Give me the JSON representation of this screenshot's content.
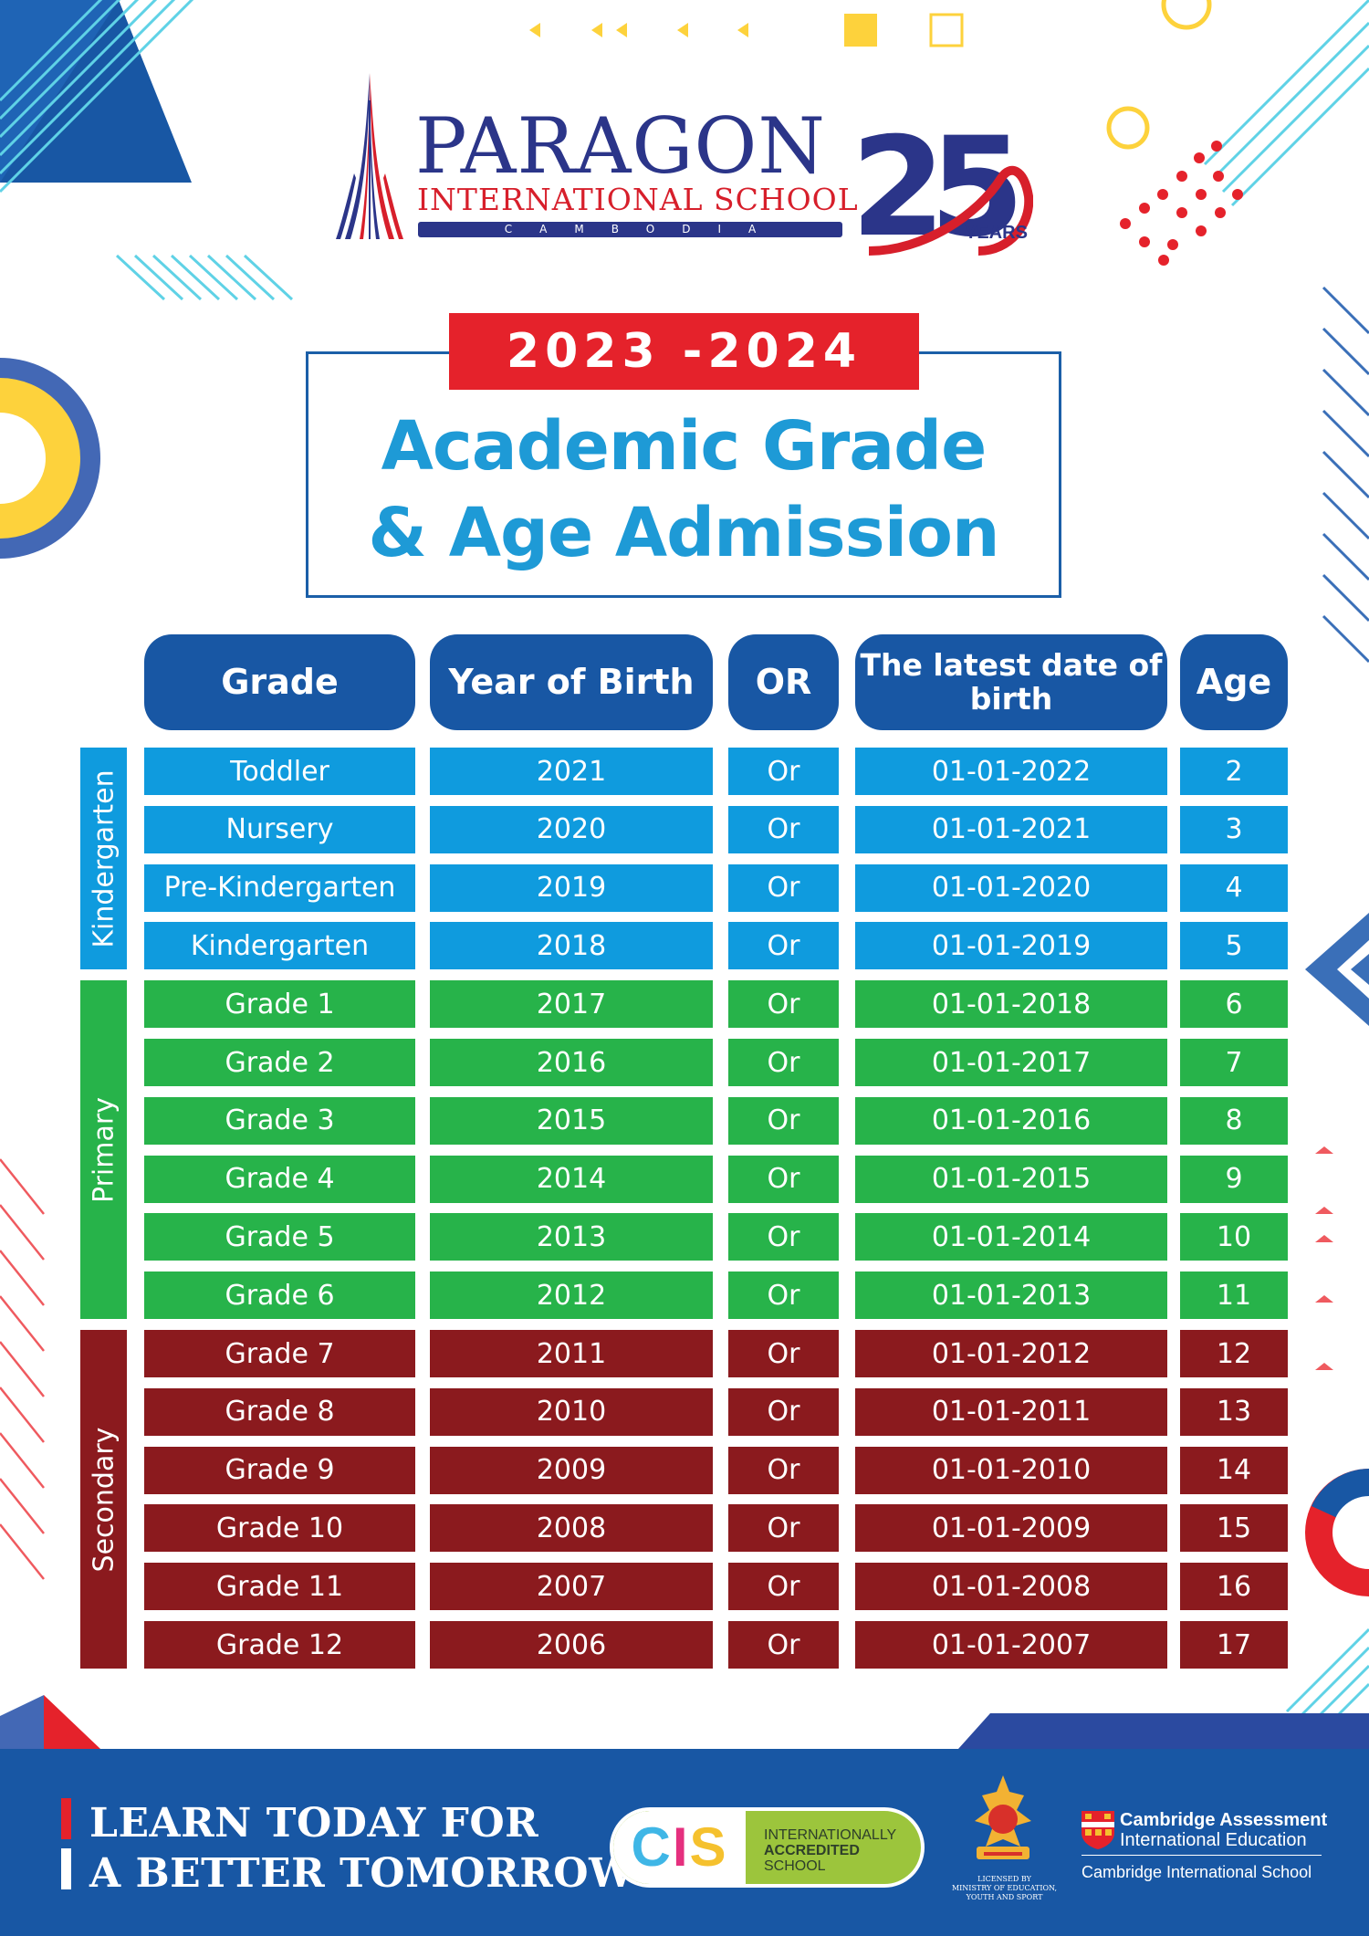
{
  "logo": {
    "name": "PARAGON",
    "subtitle": "INTERNATIONAL SCHOOL",
    "country": "CAMBODIA",
    "anniversary": "25",
    "anniversary_unit": "YEARS"
  },
  "year_badge": "2023 -2024",
  "title": {
    "line1": "Academic Grade",
    "line2": "& Age Admission"
  },
  "table": {
    "headers": [
      "Grade",
      "Year of Birth",
      "OR",
      "The latest date of birth",
      "Age"
    ],
    "sections": [
      {
        "label": "Kindergarten",
        "color": "#0f9bde"
      },
      {
        "label": "Primary",
        "color": "#27b34a"
      },
      {
        "label": "Secondary",
        "color": "#8b1a1e"
      }
    ],
    "rows": [
      {
        "grade": "Toddler",
        "year": "2021",
        "or": "Or",
        "latest_dob": "01-01-2022",
        "age": "2"
      },
      {
        "grade": "Nursery",
        "year": "2020",
        "or": "Or",
        "latest_dob": "01-01-2021",
        "age": "3"
      },
      {
        "grade": "Pre-Kindergarten",
        "year": "2019",
        "or": "Or",
        "latest_dob": "01-01-2020",
        "age": "4"
      },
      {
        "grade": "Kindergarten",
        "year": "2018",
        "or": "Or",
        "latest_dob": "01-01-2019",
        "age": "5"
      },
      {
        "grade": "Grade 1",
        "year": "2017",
        "or": "Or",
        "latest_dob": "01-01-2018",
        "age": "6"
      },
      {
        "grade": "Grade 2",
        "year": "2016",
        "or": "Or",
        "latest_dob": "01-01-2017",
        "age": "7"
      },
      {
        "grade": "Grade 3",
        "year": "2015",
        "or": "Or",
        "latest_dob": "01-01-2016",
        "age": "8"
      },
      {
        "grade": "Grade 4",
        "year": "2014",
        "or": "Or",
        "latest_dob": "01-01-2015",
        "age": "9"
      },
      {
        "grade": "Grade 5",
        "year": "2013",
        "or": "Or",
        "latest_dob": "01-01-2014",
        "age": "10"
      },
      {
        "grade": "Grade 6",
        "year": "2012",
        "or": "Or",
        "latest_dob": "01-01-2013",
        "age": "11"
      },
      {
        "grade": "Grade 7",
        "year": "2011",
        "or": "Or",
        "latest_dob": "01-01-2012",
        "age": "12"
      },
      {
        "grade": "Grade 8",
        "year": "2010",
        "or": "Or",
        "latest_dob": "01-01-2011",
        "age": "13"
      },
      {
        "grade": "Grade 9",
        "year": "2009",
        "or": "Or",
        "latest_dob": "01-01-2010",
        "age": "14"
      },
      {
        "grade": "Grade 10",
        "year": "2008",
        "or": "Or",
        "latest_dob": "01-01-2009",
        "age": "15"
      },
      {
        "grade": "Grade 11",
        "year": "2007",
        "or": "Or",
        "latest_dob": "01-01-2008",
        "age": "16"
      },
      {
        "grade": "Grade 12",
        "year": "2006",
        "or": "Or",
        "latest_dob": "01-01-2007",
        "age": "17"
      }
    ]
  },
  "footer": {
    "slogan_line1": "LEARN TODAY FOR",
    "slogan_line2": "A BETTER TOMORROW",
    "cis_logo": "CIS",
    "cis_line1": "INTERNATIONALLY",
    "cis_line2": "ACCREDITED",
    "cis_line3": "SCHOOL",
    "ministry_line1": "LICENSED BY",
    "ministry_line2": "MINISTRY OF EDUCATION,",
    "ministry_line3": "YOUTH AND SPORT",
    "cambridge_line1": "Cambridge Assessment",
    "cambridge_line2": "International Education",
    "cambridge_line3": "Cambridge International School"
  },
  "colors": {
    "navy": "#1857a4",
    "red": "#e5222b",
    "title_blue": "#1e9ad6",
    "yellow": "#fdd23c"
  }
}
